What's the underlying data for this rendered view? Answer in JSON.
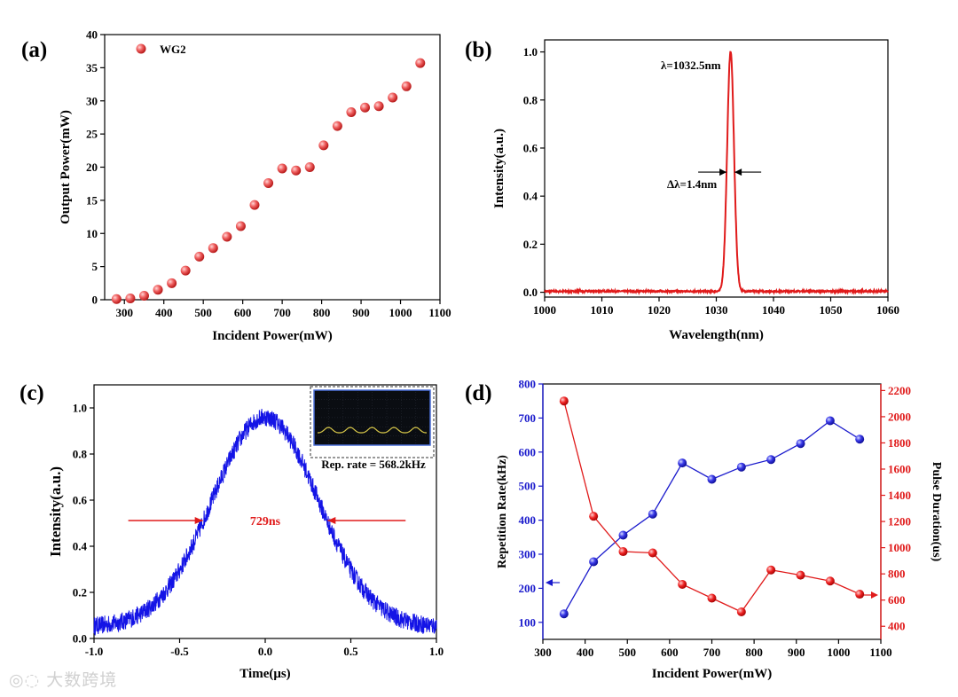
{
  "charts": [
    {
      "id": "a",
      "panel_label": "(a)",
      "chart_data": {
        "type": "scatter",
        "xlabel": "Incident Power(mW)",
        "ylabel": "Output Power(mW)",
        "xlim": [
          250,
          1100
        ],
        "ylim": [
          0,
          40
        ],
        "xticks": [
          300,
          400,
          500,
          600,
          700,
          800,
          900,
          1000,
          1100
        ],
        "yticks": [
          0,
          5,
          10,
          15,
          20,
          25,
          30,
          35,
          40
        ],
        "legend": "WG2",
        "series": [
          {
            "name": "WG2",
            "x": [
              280,
              315,
              350,
              385,
              420,
              455,
              490,
              525,
              560,
              595,
              630,
              665,
              700,
              735,
              770,
              805,
              840,
              875,
              910,
              945,
              980,
              1015,
              1050
            ],
            "y": [
              0.1,
              0.2,
              0.6,
              1.5,
              2.5,
              4.4,
              6.5,
              7.8,
              9.5,
              11.1,
              14.3,
              17.6,
              19.8,
              19.5,
              20.0,
              23.3,
              26.2,
              28.3,
              29.0,
              29.2,
              30.5,
              32.2,
              35.7
            ]
          }
        ]
      }
    },
    {
      "id": "b",
      "panel_label": "(b)",
      "chart_data": {
        "type": "line",
        "xlabel": "Wavelength(nm)",
        "ylabel": "Intensity(a.u.)",
        "xlim": [
          1000,
          1060
        ],
        "ylim": [
          -0.02,
          1.05
        ],
        "xticks": [
          1000,
          1010,
          1020,
          1030,
          1040,
          1050,
          1060
        ],
        "yticks": [
          0.0,
          0.2,
          0.4,
          0.6,
          0.8,
          1.0
        ],
        "peak_center": 1032.5,
        "fwhm": 1.4,
        "baseline": 0.004,
        "annotations": {
          "peak": "λ=1032.5nm",
          "width": "Δλ=1.4nm"
        }
      }
    },
    {
      "id": "c",
      "panel_label": "(c)",
      "chart_data": {
        "type": "line",
        "xlabel": "Time(μs)",
        "ylabel": "Intensity(a.u.)",
        "xlim": [
          -1.0,
          1.0
        ],
        "ylim": [
          0.0,
          1.1
        ],
        "xticks": [
          -1.0,
          -0.5,
          0.0,
          0.5,
          1.0
        ],
        "yticks": [
          0.0,
          0.2,
          0.4,
          0.6,
          0.8,
          1.0
        ],
        "pulse_fwhm_us": 0.729,
        "pulse_peak": 0.96,
        "background": 0.05,
        "noise": 0.04,
        "annotations": {
          "width": "729ns",
          "inset_caption": "Rep. rate = 568.2kHz"
        }
      }
    },
    {
      "id": "d",
      "panel_label": "(d)",
      "chart_data": {
        "type": "line",
        "xlabel": "Incident Power(mW)",
        "ylabel": "Repetition Rate(kHz)",
        "y2label": "Pulse Duration(us)",
        "xlim": [
          300,
          1100
        ],
        "ylim": [
          50,
          800
        ],
        "y2lim": [
          300,
          2250
        ],
        "xticks": [
          300,
          400,
          500,
          600,
          700,
          800,
          900,
          1000,
          1100
        ],
        "yticks": [
          100,
          200,
          300,
          400,
          500,
          600,
          700,
          800
        ],
        "y2ticks": [
          400,
          600,
          800,
          1000,
          1200,
          1400,
          1600,
          1800,
          2000,
          2200
        ],
        "x": [
          350,
          420,
          490,
          560,
          630,
          700,
          770,
          840,
          910,
          980,
          1050
        ],
        "series": [
          {
            "name": "Repetition Rate",
            "axis": "left",
            "color": "#1a1acc",
            "values": [
              125,
              278,
              356,
              418,
              568,
              520,
              556,
              578,
              625,
              692,
              638
            ]
          },
          {
            "name": "Pulse Duration",
            "axis": "right",
            "color": "#e01b1b",
            "values": [
              2120,
              1240,
              970,
              960,
              720,
              615,
              510,
              830,
              790,
              745,
              645
            ]
          }
        ]
      }
    }
  ],
  "colors": {
    "red": "#e01b1b",
    "blue": "#1414e6",
    "navy": "#1a1acc",
    "axis": "#000000"
  },
  "watermark": "大数跨境"
}
